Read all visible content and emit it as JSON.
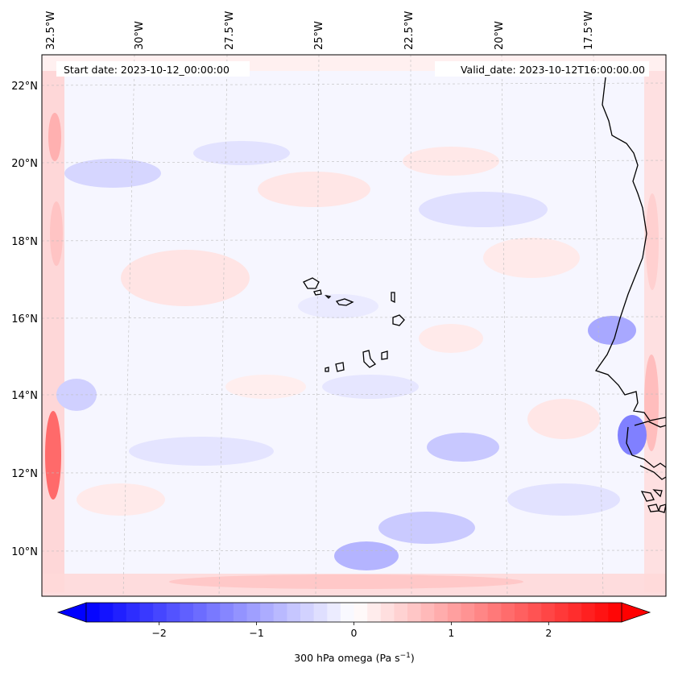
{
  "header": {
    "start_label": "Start date: 2023-10-12_00:00:00",
    "valid_label": "Valid_date: 2023-10-12T16:00:00.00"
  },
  "lon_labels": [
    "32.5°W",
    "30°W",
    "27.5°W",
    "25°W",
    "22.5°W",
    "20°W",
    "17.5°W"
  ],
  "lat_labels": [
    "22°N",
    "20°N",
    "18°N",
    "16°N",
    "14°N",
    "12°N",
    "10°N"
  ],
  "colorbar": {
    "ticks": [
      "−2",
      "−1",
      "0",
      "1",
      "2"
    ],
    "tick_values": [
      -2,
      -1,
      0,
      1,
      2
    ],
    "range": [
      -2.75,
      2.75
    ],
    "levels": 40,
    "cmap": "bwr",
    "label": "300 hPa omega (Pa s",
    "label_sup": "−1",
    "label_end": ")"
  },
  "colors": {
    "negative": "#0000ff",
    "positive": "#ff0000",
    "zero": "#ffffff",
    "coastline": "#000000",
    "gridline": "#b0b0b0"
  }
}
